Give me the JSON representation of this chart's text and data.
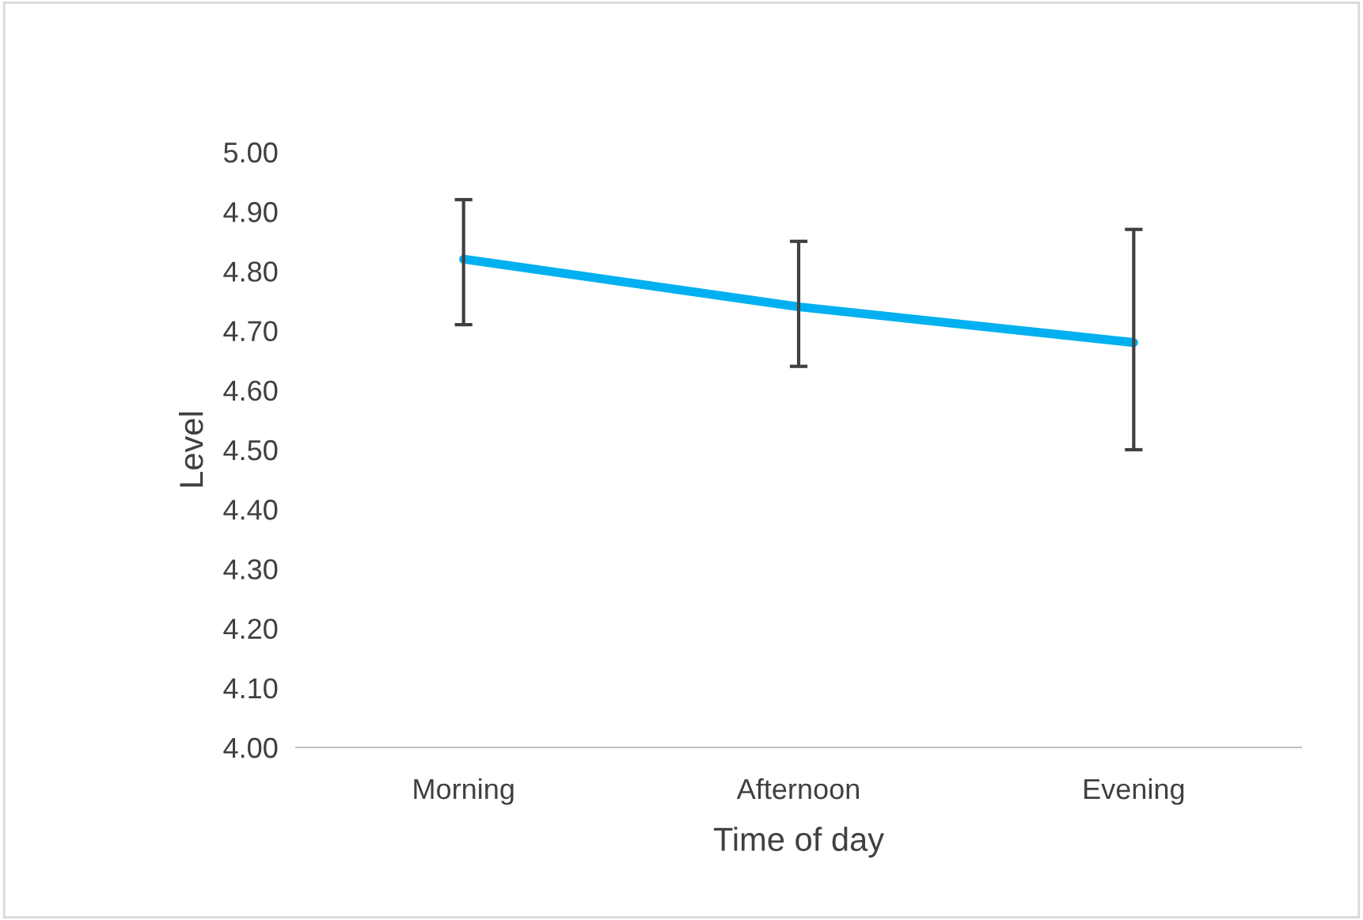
{
  "chart_data": {
    "type": "line",
    "xlabel": "Time of day",
    "ylabel": "Level",
    "categories": [
      "Morning",
      "Afternoon",
      "Evening"
    ],
    "series": [
      {
        "color": "#00b0f0",
        "values": [
          4.82,
          4.74,
          4.68
        ],
        "errors": [
          [
            4.71,
            4.92
          ],
          [
            4.64,
            4.85
          ],
          [
            4.5,
            4.87
          ]
        ]
      }
    ],
    "ylim": [
      4.0,
      5.0
    ],
    "yticks": [
      {
        "value": 4.0,
        "label": "4.00"
      },
      {
        "value": 4.1,
        "label": "4.10"
      },
      {
        "value": 4.2,
        "label": "4.20"
      },
      {
        "value": 4.3,
        "label": "4.30"
      },
      {
        "value": 4.4,
        "label": "4.40"
      },
      {
        "value": 4.5,
        "label": "4.50"
      },
      {
        "value": 4.6,
        "label": "4.60"
      },
      {
        "value": 4.7,
        "label": "4.70"
      },
      {
        "value": 4.8,
        "label": "4.80"
      },
      {
        "value": 4.9,
        "label": "4.90"
      },
      {
        "value": 5.0,
        "label": "5.00"
      }
    ],
    "grid": false,
    "legend": false,
    "marker": "none",
    "line_style": "solid"
  }
}
